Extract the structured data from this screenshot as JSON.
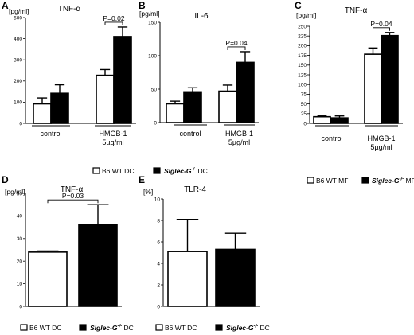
{
  "legend": {
    "white_prefix": "B6 WT",
    "black_prefix": "Siglec-G",
    "black_sup": "-/-",
    "dc_suffix": "DC",
    "mf_suffix": "MF"
  },
  "chart_data": [
    {
      "panel": "A",
      "type": "bar",
      "title": "TNF-α",
      "ylabel": "[pg/ml]",
      "ylim": [
        0,
        500
      ],
      "yticks": [
        0,
        100,
        200,
        300,
        400,
        500
      ],
      "groups": [
        {
          "label": "control",
          "sublabel": ""
        },
        {
          "label": "HMGB-1",
          "sublabel": "5µg/ml"
        }
      ],
      "series": [
        {
          "name": "B6 WT DC",
          "color": "#ffffff",
          "values": [
            92,
            227
          ],
          "errors": [
            28,
            27
          ]
        },
        {
          "name": "Siglec-G-/- DC",
          "color": "#000000",
          "values": [
            142,
            410
          ],
          "errors": [
            40,
            45
          ]
        }
      ],
      "annotations": [
        {
          "text": "P=0.02",
          "group": 1
        }
      ],
      "legend_type": "DC"
    },
    {
      "panel": "B",
      "type": "bar",
      "title": "IL-6",
      "ylabel": "[pg/ml]",
      "ylim": [
        0,
        150
      ],
      "yticks": [
        0,
        50,
        100,
        150
      ],
      "groups": [
        {
          "label": "control",
          "sublabel": ""
        },
        {
          "label": "HMGB-1",
          "sublabel": "5µg/ml"
        }
      ],
      "series": [
        {
          "name": "B6 WT DC",
          "color": "#ffffff",
          "values": [
            28,
            47
          ],
          "errors": [
            4,
            9
          ]
        },
        {
          "name": "Siglec-G-/- DC",
          "color": "#000000",
          "values": [
            46,
            90
          ],
          "errors": [
            6,
            16
          ]
        }
      ],
      "annotations": [
        {
          "text": "P=0.04",
          "group": 1
        }
      ],
      "legend_type": null
    },
    {
      "panel": "C",
      "type": "bar",
      "title": "TNF-α",
      "ylabel": "[pg/ml]",
      "ylim": [
        0,
        250
      ],
      "yticks": [
        0,
        25,
        50,
        75,
        100,
        125,
        150,
        175,
        200,
        225,
        250
      ],
      "groups": [
        {
          "label": "control",
          "sublabel": ""
        },
        {
          "label": "HMGB-1",
          "sublabel": "5µg/ml"
        }
      ],
      "series": [
        {
          "name": "B6 WT MF",
          "color": "#ffffff",
          "values": [
            17,
            178
          ],
          "errors": [
            2,
            16
          ]
        },
        {
          "name": "Siglec-G-/- MF",
          "color": "#000000",
          "values": [
            14,
            226
          ],
          "errors": [
            5,
            8
          ]
        }
      ],
      "annotations": [
        {
          "text": "P=0.04",
          "group": 1
        }
      ],
      "legend_type": "MF"
    },
    {
      "panel": "D",
      "type": "bar",
      "title": "TNF-α",
      "ylabel": "[pg/ml]",
      "ylim": [
        0,
        50
      ],
      "yticks": [
        0,
        10,
        20,
        30,
        40,
        50
      ],
      "groups": [],
      "series": [
        {
          "name": "B6 WT DC",
          "color": "#ffffff",
          "values": [
            24
          ],
          "errors": [
            0.5
          ]
        },
        {
          "name": "Siglec-G-/- DC",
          "color": "#000000",
          "values": [
            36
          ],
          "errors": [
            9
          ]
        }
      ],
      "annotations": [
        {
          "text": "P=0.03",
          "group": 0
        }
      ],
      "legend_type": "DC"
    },
    {
      "panel": "E",
      "type": "bar",
      "title": "TLR-4",
      "ylabel": "[%]",
      "ylim": [
        0,
        10
      ],
      "yticks": [
        0,
        2,
        4,
        6,
        8,
        10
      ],
      "groups": [],
      "series": [
        {
          "name": "B6 WT DC",
          "color": "#ffffff",
          "values": [
            5.1
          ],
          "errors": [
            3
          ]
        },
        {
          "name": "Siglec-G-/- DC",
          "color": "#000000",
          "values": [
            5.3
          ],
          "errors": [
            1.5
          ]
        }
      ],
      "annotations": [],
      "legend_type": "DC"
    }
  ]
}
